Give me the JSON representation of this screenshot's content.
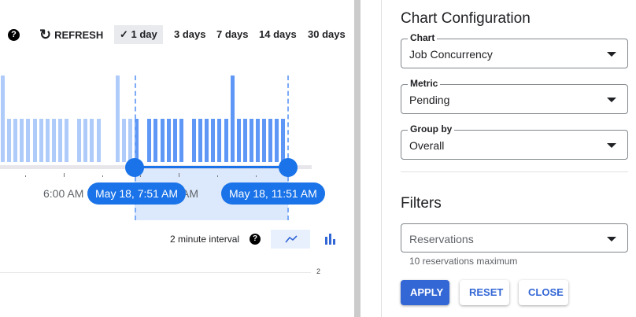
{
  "toolbar": {
    "help_icon": "question-circle",
    "refresh_label": "REFRESH",
    "ranges": [
      {
        "label": "1 day",
        "selected": true
      },
      {
        "label": "3 days"
      },
      {
        "label": "7 days"
      },
      {
        "label": "14 days"
      },
      {
        "label": "30 days"
      }
    ]
  },
  "timeline": {
    "axis_label": "6:00 AM",
    "axis_label_hidden": "AM",
    "start_label": "May 18, 7:51 AM",
    "end_label": "May 18, 11:51 AM",
    "bars": [
      2,
      1,
      1,
      1,
      1,
      1,
      1,
      1,
      1,
      1,
      1,
      0,
      1,
      1,
      1,
      1,
      0,
      0,
      2,
      1,
      1,
      1,
      0,
      1,
      1,
      1,
      1,
      1,
      1,
      0,
      1,
      1,
      1,
      1,
      1,
      1,
      2,
      1,
      1,
      1,
      1,
      1,
      1,
      1,
      1
    ],
    "colors": {
      "unselected": "#aecbfa",
      "selected": "#5e97f6",
      "accent": "#1a73e8"
    }
  },
  "chart": {
    "interval_label": "2 minute interval",
    "y_tick": "2",
    "view": "line"
  },
  "config": {
    "title": "Chart Configuration",
    "chart_label": "Chart",
    "chart_value": "Job Concurrency",
    "metric_label": "Metric",
    "metric_value": "Pending",
    "group_label": "Group by",
    "group_value": "Overall",
    "filters_title": "Filters",
    "reservations_placeholder": "Reservations",
    "reservations_hint": "10 reservations maximum",
    "apply": "APPLY",
    "reset": "RESET",
    "close": "CLOSE"
  }
}
